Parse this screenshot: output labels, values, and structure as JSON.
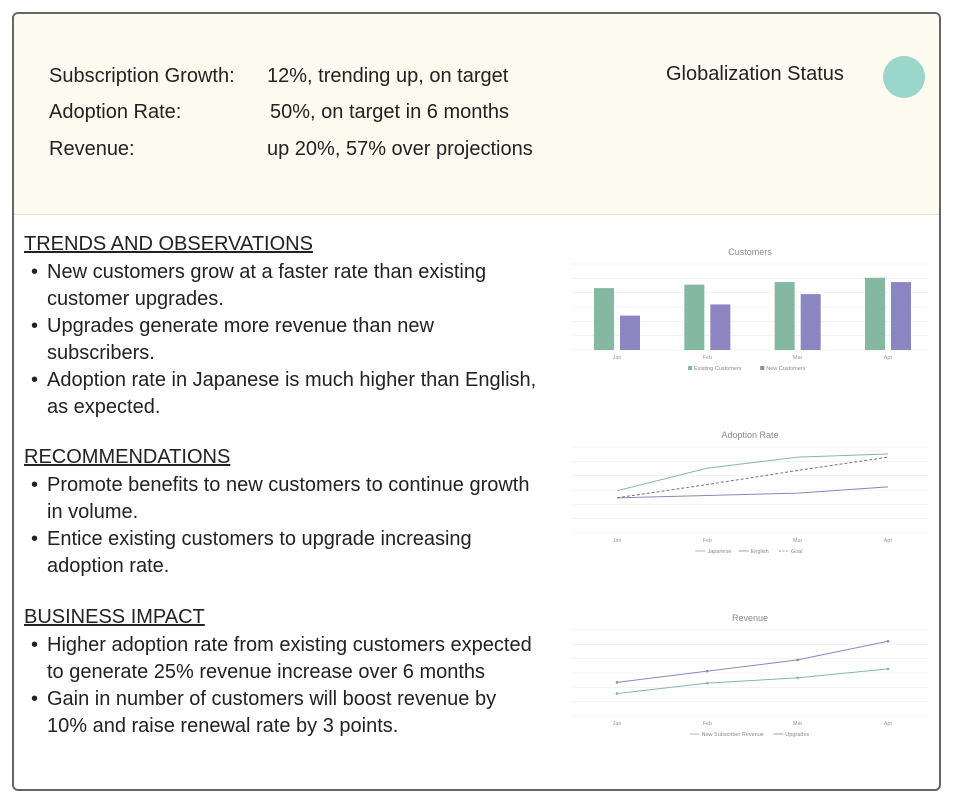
{
  "header": {
    "kpis": [
      {
        "label": "Subscription Growth:",
        "value": "12%, trending up, on target"
      },
      {
        "label": "Adoption Rate:",
        "value": "50%, on target in 6 months"
      },
      {
        "label": "Revenue:",
        "value": "up 20%, 57% over projections"
      }
    ],
    "status_label": "Globalization Status",
    "status_color": "#9bd6cb"
  },
  "sections": {
    "trends": {
      "title": "TRENDS AND OBSERVATIONS ",
      "items": [
        "New customers grow at a faster rate than existing customer upgrades.",
        "Upgrades generate more revenue than new subscribers.",
        "Adoption rate in Japanese is much higher than English, as expected."
      ]
    },
    "recommendations": {
      "title": "RECOMMENDATIONS ",
      "items": [
        "Promote benefits to new customers to continue growth in volume.",
        "Entice existing customers to upgrade increasing adoption rate."
      ]
    },
    "impact": {
      "title": "BUSINESS IMPACT ",
      "items": [
        "Higher adoption rate from existing customers expected to generate 25% revenue increase over 6 months",
        "Gain in number of customers will boost revenue by 10% and raise renewal rate by 3 points."
      ]
    }
  },
  "chart_data": [
    {
      "type": "bar",
      "title": "Customers",
      "categories": [
        "Jan",
        "Feb",
        "Mar",
        "Apr"
      ],
      "series": [
        {
          "name": "Existing Customers",
          "values": [
            72,
            76,
            79,
            84
          ],
          "color": "#84b8a1"
        },
        {
          "name": "New Customers",
          "values": [
            40,
            53,
            65,
            79
          ],
          "color": "#8b86c1"
        }
      ],
      "ylim": [
        0,
        100
      ],
      "grid": true,
      "legend": "bottom"
    },
    {
      "type": "line",
      "title": "Adoption Rate",
      "categories": [
        "Jan",
        "Feb",
        "Mar",
        "Apr"
      ],
      "series": [
        {
          "name": "Japanese",
          "values": [
            9,
            38,
            52,
            56
          ],
          "color": "#84b8a1",
          "dash": false
        },
        {
          "name": "English",
          "values": [
            0,
            3,
            6,
            14
          ],
          "color": "#8b86c1",
          "dash": false
        },
        {
          "name": "Goal",
          "values": [
            0,
            17,
            35,
            52
          ],
          "color": "#777777",
          "dash": true
        }
      ],
      "ylim": [
        -45,
        65
      ],
      "grid": true,
      "legend": "bottom"
    },
    {
      "type": "line",
      "title": "Revenue",
      "categories": [
        "Jan",
        "Feb",
        "Mar",
        "Apr"
      ],
      "series": [
        {
          "name": "New Subscriber Revenue",
          "values": [
            30,
            44,
            51,
            63
          ],
          "color": "#84b8a1",
          "dash": false,
          "markers": true
        },
        {
          "name": "Upgrades",
          "values": [
            45,
            60,
            75,
            100
          ],
          "color": "#8b86c1",
          "dash": false,
          "markers": true
        }
      ],
      "ylim": [
        0,
        115
      ],
      "grid": true,
      "legend": "bottom"
    }
  ]
}
